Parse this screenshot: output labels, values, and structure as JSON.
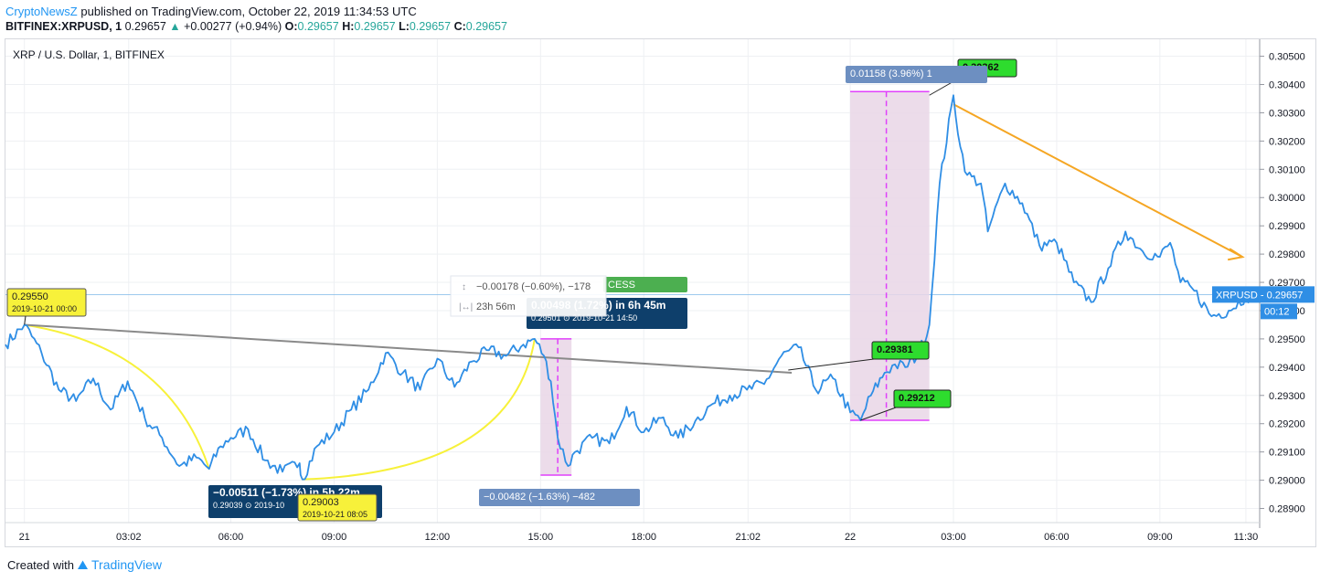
{
  "header": {
    "author": "CryptoNewsZ",
    "published_text": "published on TradingView.com, October 22, 2019 11:34:53 UTC",
    "symbol": "BITFINEX:XRPUSD, 1",
    "last": "0.29657",
    "change_arrow": "▲",
    "change": "+0.00277 (+0.94%)",
    "o_label": "O:",
    "o": "0.29657",
    "h_label": "H:",
    "h": "0.29657",
    "l_label": "L:",
    "l": "0.29657",
    "c_label": "C:",
    "c": "0.29657"
  },
  "chart_title": "XRP / U.S. Dollar, 1, BITFINEX",
  "price_tag": {
    "symbol": "XRPUSD",
    "price": "0.29657",
    "countdown": "00:12"
  },
  "footer": {
    "created_with": "Created with",
    "brand": "TradingView"
  },
  "colors": {
    "price_line": "#2f8ee5",
    "yellow": "#f7f13a",
    "gray_trend": "#8a8a8a",
    "orange_arrow": "#f5a623",
    "magenta": "#e040fb",
    "green_label": "#2edc2e",
    "label_dark": "#0e3f6b",
    "label_blue": "#6d8fc1"
  },
  "annotations": {
    "high_label": "0.30362",
    "range_up": "0.01158 (3.96%) 1",
    "low_label": "0.29212",
    "mid_label": "0.29381",
    "left_price": "0.29550",
    "left_date": "2019-10-21 00:00",
    "bottom_dark_main": "−0.00511 (−1.73%) in 5h 22m",
    "bottom_dark_sub": "0.29039 ⊙ 2019-10",
    "bottom_yellow_price": "0.29003",
    "bottom_yellow_date": "2019-10-21 08:05",
    "mid_dark_main": "0.00498 (1.72%) in 6h 45m",
    "mid_dark_sub": "0.29501 ⊙ 2019-10-21  14:50",
    "green_bar_text": "CESS",
    "tooltip_line1": "−0.00178 (−0.60%), −178",
    "tooltip_line2": "23h 56m",
    "drop_label": "−0.00482 (−1.63%) −482"
  },
  "chart_data": {
    "type": "line",
    "title": "XRP / U.S. Dollar, 1, BITFINEX",
    "ylim": [
      0.2885,
      0.3056
    ],
    "y_ticks": [
      "0.30500",
      "0.30400",
      "0.30300",
      "0.30200",
      "0.30100",
      "0.30000",
      "0.29900",
      "0.29800",
      "0.29700",
      "0.29600",
      "0.29500",
      "0.29400",
      "0.29300",
      "0.29200",
      "0.29100",
      "0.29000",
      "0.28900"
    ],
    "x_labels": [
      "21",
      "03:02",
      "06:00",
      "09:00",
      "12:00",
      "15:00",
      "18:00",
      "21:02",
      "22",
      "03:00",
      "06:00",
      "09:00",
      "11:30"
    ],
    "x_hours": [
      0,
      3.03,
      6,
      9,
      12,
      15,
      18,
      21.03,
      24,
      27,
      30,
      33,
      35.5
    ],
    "xlim_hours": [
      -0.55,
      35.9
    ],
    "grid": true,
    "series": [
      {
        "x_hours": [
          -0.55,
          0,
          0.5,
          1,
          1.5,
          2,
          2.5,
          3,
          3.5,
          4,
          4.5,
          5,
          5.37,
          5.7,
          6,
          6.5,
          7,
          7.5,
          8,
          8.08,
          8.5,
          9,
          9.5,
          10,
          10.5,
          11,
          11.5,
          12,
          12.5,
          13,
          13.5,
          14,
          14.5,
          14.83,
          15.1,
          15.3,
          15.5,
          15.8,
          16,
          16.5,
          17,
          17.5,
          18,
          18.5,
          19,
          19.5,
          20,
          20.5,
          21,
          21.5,
          22,
          22.5,
          23,
          23.5,
          24,
          24.3,
          24.6,
          25,
          25.3,
          25.6,
          26,
          26.3,
          26.6,
          27,
          27.2,
          27.4,
          27.8,
          28,
          28.5,
          29,
          29.5,
          30,
          30.5,
          31,
          31.5,
          32,
          32.5,
          33,
          33.3,
          33.6,
          34,
          34.5,
          35,
          35.5,
          35.85
        ],
        "values": [
          0.2948,
          0.2955,
          0.2945,
          0.2932,
          0.2928,
          0.2936,
          0.2925,
          0.2935,
          0.2922,
          0.2915,
          0.2905,
          0.2908,
          0.2904,
          0.2912,
          0.2915,
          0.2918,
          0.2907,
          0.2903,
          0.2906,
          0.29003,
          0.2912,
          0.2917,
          0.2925,
          0.2932,
          0.2945,
          0.2938,
          0.2932,
          0.2943,
          0.2933,
          0.2942,
          0.2946,
          0.2944,
          0.2948,
          0.295,
          0.2944,
          0.2935,
          0.2915,
          0.2905,
          0.291,
          0.2915,
          0.2913,
          0.2926,
          0.2917,
          0.2922,
          0.2915,
          0.2921,
          0.2927,
          0.293,
          0.2932,
          0.2934,
          0.2944,
          0.2947,
          0.2932,
          0.2936,
          0.2924,
          0.29212,
          0.293,
          0.2938,
          0.2941,
          0.294,
          0.2945,
          0.2955,
          0.3005,
          0.30362,
          0.3018,
          0.3008,
          0.3005,
          0.2988,
          0.3005,
          0.2998,
          0.2983,
          0.2984,
          0.297,
          0.2963,
          0.2975,
          0.2988,
          0.2981,
          0.2979,
          0.2984,
          0.297,
          0.2967,
          0.2958,
          0.296,
          0.2965,
          0.29657
        ]
      }
    ],
    "trendlines": [
      {
        "color": "gray",
        "from": [
          0,
          0.2955
        ],
        "to": [
          22.3,
          0.2938
        ]
      },
      {
        "color": "orange",
        "from": [
          27,
          0.3033
        ],
        "to": [
          35.4,
          0.2979
        ]
      }
    ]
  }
}
